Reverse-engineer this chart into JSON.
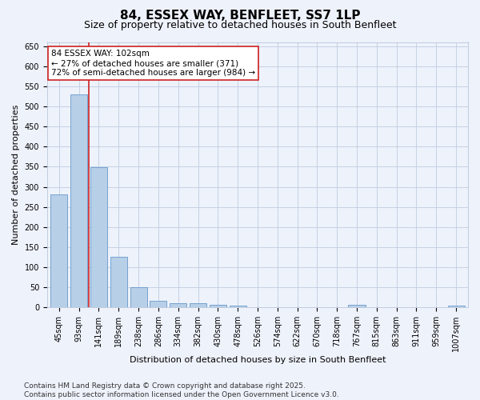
{
  "title": "84, ESSEX WAY, BENFLEET, SS7 1LP",
  "subtitle": "Size of property relative to detached houses in South Benfleet",
  "xlabel": "Distribution of detached houses by size in South Benfleet",
  "ylabel": "Number of detached properties",
  "categories": [
    "45sqm",
    "93sqm",
    "141sqm",
    "189sqm",
    "238sqm",
    "286sqm",
    "334sqm",
    "382sqm",
    "430sqm",
    "478sqm",
    "526sqm",
    "574sqm",
    "622sqm",
    "670sqm",
    "718sqm",
    "767sqm",
    "815sqm",
    "863sqm",
    "911sqm",
    "959sqm",
    "1007sqm"
  ],
  "values": [
    282,
    530,
    348,
    125,
    50,
    17,
    10,
    10,
    7,
    5,
    0,
    0,
    0,
    0,
    0,
    6,
    0,
    0,
    0,
    0,
    5
  ],
  "bar_color": "#b8cfe8",
  "bar_edge_color": "#6699cc",
  "vline_x_index": 1.5,
  "vline_color": "#cc2222",
  "annotation_text": "84 ESSEX WAY: 102sqm\n← 27% of detached houses are smaller (371)\n72% of semi-detached houses are larger (984) →",
  "annotation_box_color": "#ffffff",
  "annotation_box_edge": "#cc2222",
  "ylim": [
    0,
    660
  ],
  "yticks": [
    0,
    50,
    100,
    150,
    200,
    250,
    300,
    350,
    400,
    450,
    500,
    550,
    600,
    650
  ],
  "footer_line1": "Contains HM Land Registry data © Crown copyright and database right 2025.",
  "footer_line2": "Contains public sector information licensed under the Open Government Licence v3.0.",
  "bg_color": "#eef2fb",
  "plot_bg_color": "#eef2fb",
  "grid_color": "#c0cce0",
  "title_fontsize": 11,
  "subtitle_fontsize": 9,
  "axis_label_fontsize": 8,
  "tick_fontsize": 7,
  "footer_fontsize": 6.5,
  "annotation_fontsize": 7.5
}
